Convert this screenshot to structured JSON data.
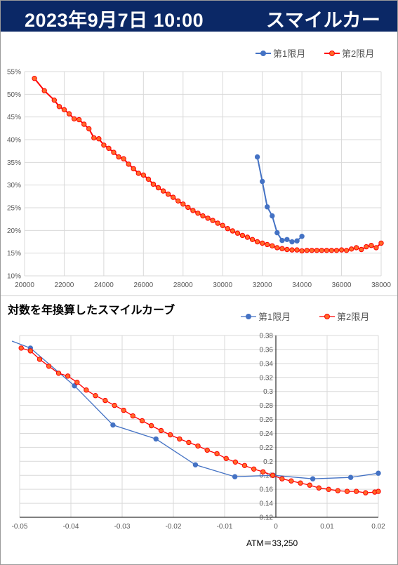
{
  "header": {
    "date_time": "2023年9月7日 10:00",
    "name": "スマイルカーブ",
    "background": "#0b2866"
  },
  "chart_data": [
    {
      "type": "line",
      "title": "",
      "xlabel": "",
      "ylabel": "",
      "xlim": [
        20000,
        38000
      ],
      "ylim": [
        0.1,
        0.55
      ],
      "x_ticks": [
        20000,
        22000,
        24000,
        26000,
        28000,
        30000,
        32000,
        34000,
        36000,
        38000
      ],
      "x_tick_labels": [
        "20000",
        "22000",
        "24000",
        "26000",
        "28000",
        "30000",
        "32000",
        "34000",
        "36000",
        "38000"
      ],
      "y_ticks": [
        0.1,
        0.15,
        0.2,
        0.25,
        0.3,
        0.35,
        0.4,
        0.45,
        0.5,
        0.55
      ],
      "y_tick_labels": [
        "10%",
        "15%",
        "20%",
        "25%",
        "30%",
        "35%",
        "40%",
        "45%",
        "50%",
        "55%"
      ],
      "grid": true,
      "legend_position": "top-right",
      "series": [
        {
          "name": "第1限月",
          "color": "#4472c4",
          "marker": "circle",
          "x": [
            31750,
            32000,
            32250,
            32500,
            32750,
            33000,
            33250,
            33500,
            33750,
            34000
          ],
          "y": [
            0.362,
            0.308,
            0.252,
            0.232,
            0.195,
            0.178,
            0.18,
            0.175,
            0.177,
            0.187
          ]
        },
        {
          "name": "第2限月",
          "color": "#ff0000",
          "marker_fill": "#ff6a2a",
          "marker": "circle",
          "x": [
            20500,
            21000,
            21500,
            21750,
            22000,
            22250,
            22500,
            22750,
            23000,
            23250,
            23500,
            23750,
            24000,
            24250,
            24500,
            24750,
            25000,
            25250,
            25500,
            25750,
            26000,
            26250,
            26500,
            26750,
            27000,
            27250,
            27500,
            27750,
            28000,
            28250,
            28500,
            28750,
            29000,
            29250,
            29500,
            29750,
            30000,
            30250,
            30500,
            30750,
            31000,
            31250,
            31500,
            31750,
            32000,
            32250,
            32500,
            32750,
            33000,
            33250,
            33500,
            33750,
            34000,
            34250,
            34500,
            34750,
            35000,
            35250,
            35500,
            35750,
            36000,
            36250,
            36500,
            36750,
            37000,
            37250,
            37500,
            37750,
            38000
          ],
          "y": [
            0.535,
            0.508,
            0.487,
            0.473,
            0.466,
            0.457,
            0.446,
            0.444,
            0.434,
            0.424,
            0.404,
            0.402,
            0.388,
            0.381,
            0.372,
            0.362,
            0.358,
            0.346,
            0.336,
            0.326,
            0.322,
            0.313,
            0.302,
            0.294,
            0.287,
            0.28,
            0.273,
            0.265,
            0.258,
            0.251,
            0.244,
            0.238,
            0.232,
            0.227,
            0.222,
            0.216,
            0.211,
            0.204,
            0.199,
            0.194,
            0.189,
            0.185,
            0.18,
            0.175,
            0.172,
            0.169,
            0.166,
            0.162,
            0.16,
            0.158,
            0.157,
            0.157,
            0.155,
            0.156,
            0.156,
            0.156,
            0.156,
            0.156,
            0.156,
            0.156,
            0.157,
            0.156,
            0.159,
            0.162,
            0.158,
            0.164,
            0.167,
            0.162,
            0.172
          ]
        }
      ]
    },
    {
      "type": "line",
      "title": "対数を年換算したスマイルカーブ",
      "xlabel": "",
      "ylabel": "",
      "xlim": [
        -0.05,
        0.02
      ],
      "ylim": [
        0.12,
        0.38
      ],
      "x_ticks": [
        -0.05,
        -0.04,
        -0.03,
        -0.02,
        -0.01,
        0,
        0.01,
        0.02
      ],
      "x_tick_labels": [
        "-0.05",
        "-0.04",
        "-0.03",
        "-0.02",
        "-0.01",
        "0",
        "0.01",
        "0.02"
      ],
      "y_ticks": [
        0.12,
        0.14,
        0.16,
        0.18,
        0.2,
        0.22,
        0.24,
        0.26,
        0.28,
        0.3,
        0.32,
        0.34,
        0.36,
        0.38
      ],
      "y_tick_labels": [
        "0.12",
        "0.14",
        "0.16",
        "0.18",
        "0.2",
        "0.22",
        "0.24",
        "0.26",
        "0.28",
        "0.3",
        "0.32",
        "0.34",
        "0.36",
        "0.38"
      ],
      "grid": true,
      "legend_position": "top-right",
      "annotation": "ATM＝33,250",
      "series": [
        {
          "name": "第1限月",
          "color": "#4472c4",
          "marker": "circle",
          "x": [
            -0.0515,
            -0.0479,
            -0.0393,
            -0.0318,
            -0.0234,
            -0.0157,
            -0.008,
            -0.0005,
            0.0072,
            0.0146,
            0.02
          ],
          "y": [
            0.372,
            0.362,
            0.308,
            0.252,
            0.232,
            0.195,
            0.178,
            0.18,
            0.175,
            0.177,
            0.183
          ]
        },
        {
          "name": "第2限月",
          "color": "#ff0000",
          "marker_fill": "#ff6a2a",
          "marker": "circle",
          "x": [
            -0.0497,
            -0.0479,
            -0.0461,
            -0.0443,
            -0.0424,
            -0.0406,
            -0.0388,
            -0.037,
            -0.0352,
            -0.0333,
            -0.0315,
            -0.0297,
            -0.0279,
            -0.0261,
            -0.0243,
            -0.0224,
            -0.0206,
            -0.0188,
            -0.017,
            -0.0152,
            -0.0134,
            -0.0115,
            -0.0097,
            -0.0079,
            -0.0061,
            -0.0043,
            -0.0025,
            -0.0006,
            0.0012,
            0.003,
            0.0048,
            0.0066,
            0.0084,
            0.0103,
            0.0121,
            0.0139,
            0.0157,
            0.0175,
            0.0193,
            0.02
          ],
          "y": [
            0.362,
            0.358,
            0.346,
            0.336,
            0.326,
            0.322,
            0.313,
            0.302,
            0.294,
            0.287,
            0.28,
            0.273,
            0.265,
            0.258,
            0.251,
            0.244,
            0.238,
            0.232,
            0.227,
            0.222,
            0.216,
            0.211,
            0.204,
            0.199,
            0.194,
            0.189,
            0.185,
            0.18,
            0.175,
            0.172,
            0.169,
            0.166,
            0.162,
            0.16,
            0.158,
            0.157,
            0.157,
            0.155,
            0.156,
            0.157
          ]
        }
      ]
    }
  ]
}
